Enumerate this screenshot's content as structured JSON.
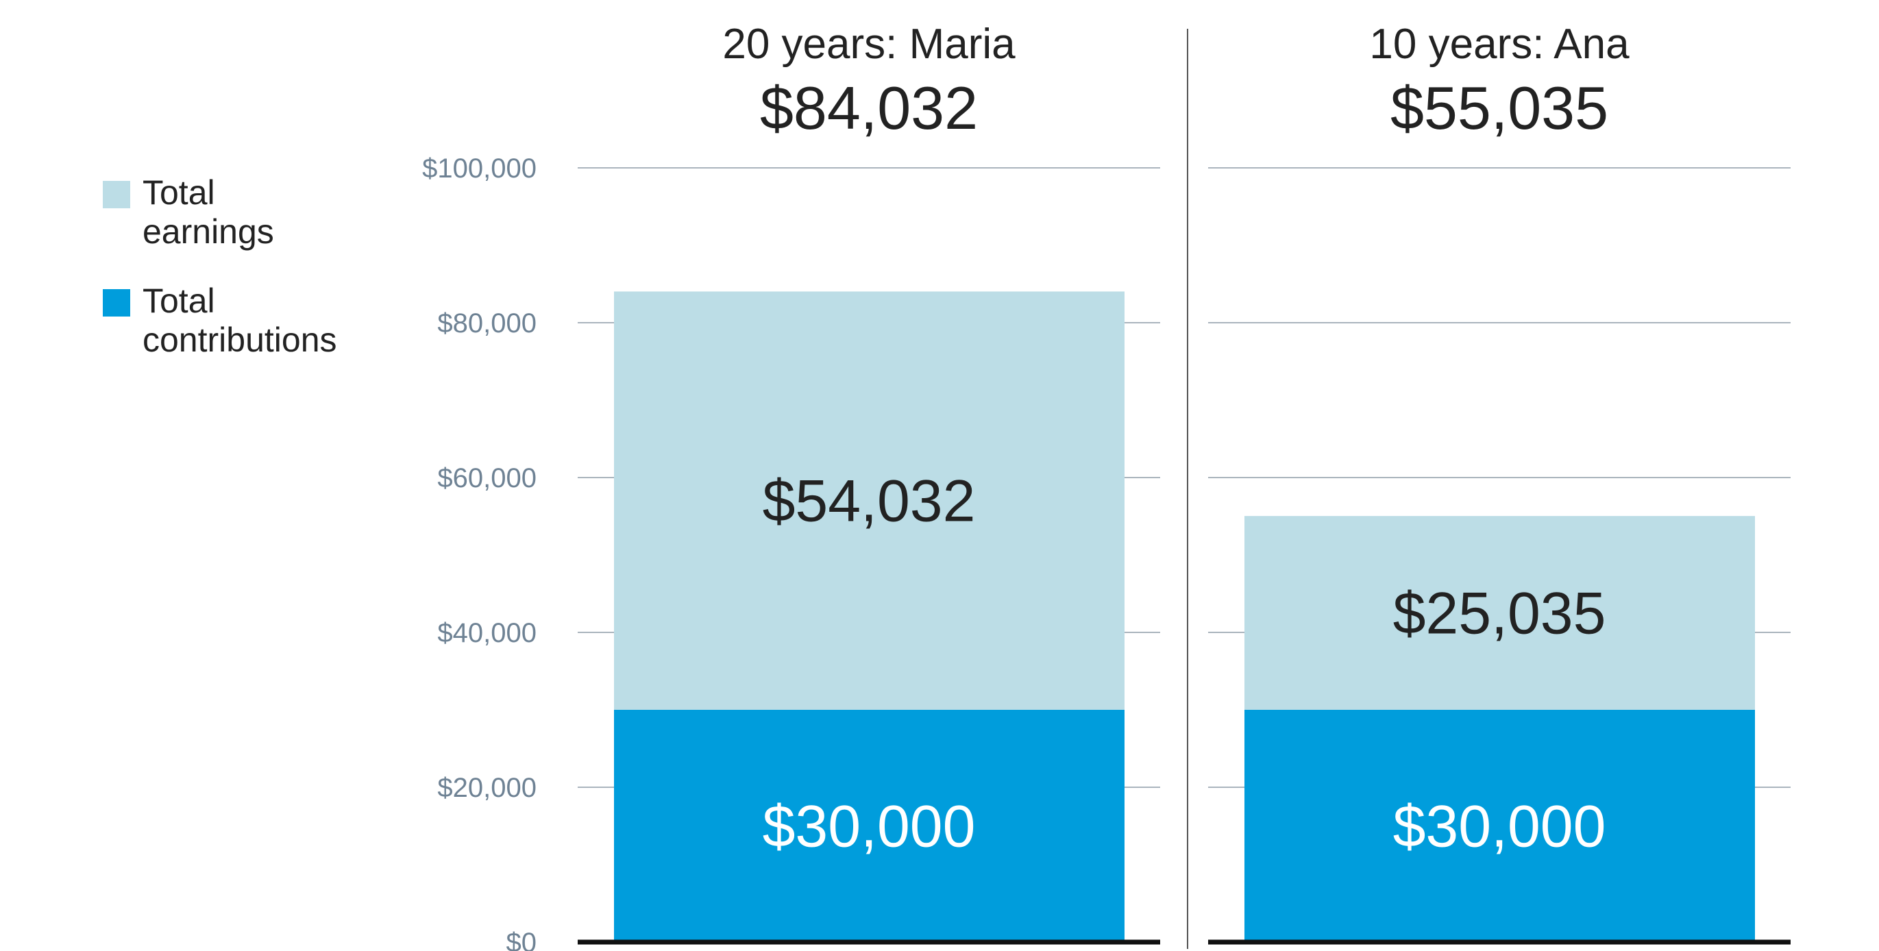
{
  "chart_data": {
    "type": "bar",
    "stacked": true,
    "ylim": [
      0,
      100000
    ],
    "yticks": [
      0,
      20000,
      40000,
      60000,
      80000,
      100000
    ],
    "ytick_labels": [
      "$0",
      "$20,000",
      "$40,000",
      "$60,000",
      "$80,000",
      "$100,000"
    ],
    "grid": true,
    "legend_position": "top-left",
    "legend": [
      {
        "key": "earnings",
        "lines": [
          "Total",
          "earnings"
        ],
        "color": "#bcdde6"
      },
      {
        "key": "contributions",
        "lines": [
          "Total",
          "contributions"
        ],
        "color": "#009ddc"
      }
    ],
    "panels": [
      {
        "title": "20 years: Maria",
        "total_label": "$84,032",
        "total": 84032,
        "contributions": 30000,
        "contributions_label": "$30,000",
        "earnings": 54032,
        "earnings_label": "$54,032"
      },
      {
        "title": "10 years: Ana",
        "total_label": "$55,035",
        "total": 55035,
        "contributions": 30000,
        "contributions_label": "$30,000",
        "earnings": 25035,
        "earnings_label": "$25,035"
      }
    ]
  }
}
